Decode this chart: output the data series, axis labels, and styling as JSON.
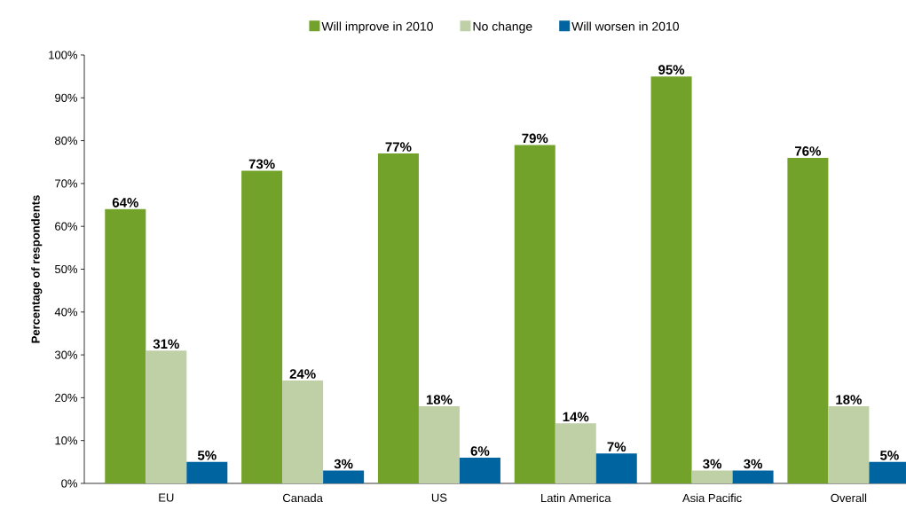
{
  "chart_data": {
    "type": "bar",
    "ylabel": "Percentage of respondents",
    "categories": [
      "EU",
      "Canada",
      "US",
      "Latin America",
      "Asia Pacific",
      "Overall"
    ],
    "series": [
      {
        "name": "Will improve in 2010",
        "color": "#72a22a",
        "values": [
          64,
          73,
          77,
          79,
          95,
          76
        ],
        "value_labels": [
          "64%",
          "73%",
          "77%",
          "79%",
          "95%",
          "76%"
        ]
      },
      {
        "name": "No change",
        "color": "#bfcfa6",
        "values": [
          31,
          24,
          18,
          14,
          3,
          18
        ],
        "value_labels": [
          "31%",
          "24%",
          "18%",
          "14%",
          "3%",
          "18%"
        ]
      },
      {
        "name": "Will worsen in 2010",
        "color": "#0064a0",
        "values": [
          5,
          3,
          6,
          7,
          3,
          5
        ],
        "value_labels": [
          "5%",
          "3%",
          "6%",
          "7%",
          "3%",
          "5%"
        ]
      }
    ],
    "ylim": [
      0,
      100
    ],
    "yticks": [
      {
        "value": 0,
        "label": "0%"
      },
      {
        "value": 10,
        "label": "10%"
      },
      {
        "value": 20,
        "label": "20%"
      },
      {
        "value": 30,
        "label": "30%"
      },
      {
        "value": 40,
        "label": "40%"
      },
      {
        "value": 50,
        "label": "50%"
      },
      {
        "value": 60,
        "label": "60%"
      },
      {
        "value": 70,
        "label": "70%"
      },
      {
        "value": 80,
        "label": "80%"
      },
      {
        "value": 90,
        "label": "90%"
      },
      {
        "value": 100,
        "label": "100%"
      }
    ],
    "legend": "top"
  }
}
